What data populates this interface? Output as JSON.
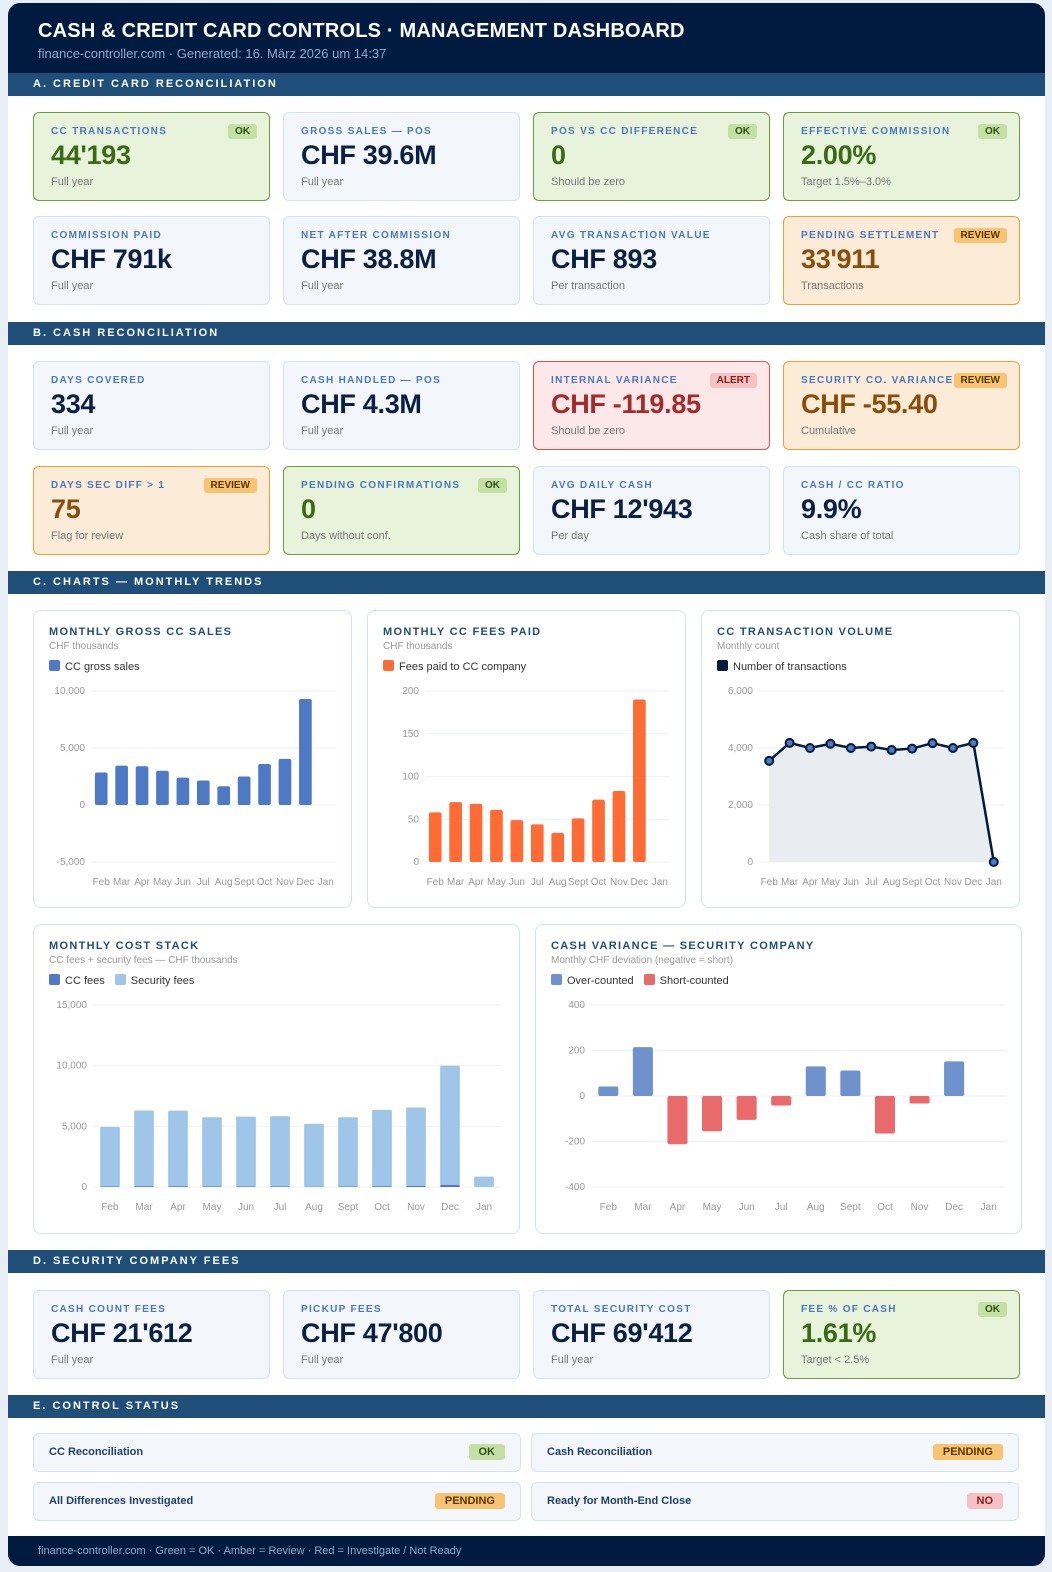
{
  "header": {
    "title": "CASH & CREDIT CARD CONTROLS  ·  MANAGEMENT DASHBOARD",
    "subtitle": "finance-controller.com  ·  Generated: 16. März 2026 um 14:37"
  },
  "sections": {
    "a": "A.  CREDIT CARD RECONCILIATION",
    "b": "B.  CASH RECONCILIATION",
    "c": "C.  CHARTS — MONTHLY TRENDS",
    "d": "D.  SECURITY COMPANY FEES",
    "e": "E.  CONTROL STATUS"
  },
  "colors": {
    "header": "#001a40",
    "section": "#1f4e79",
    "ok": "#6aa035",
    "review": "#f0a030",
    "alert": "#e05050"
  },
  "kpi_a": [
    {
      "label": "CC TRANSACTIONS",
      "value": "44'193",
      "note": "Full year",
      "badge": "OK",
      "status": "green"
    },
    {
      "label": "GROSS SALES — POS",
      "value": "CHF 39.6M",
      "note": "Full year",
      "badge": "",
      "status": "neutral"
    },
    {
      "label": "POS VS CC DIFFERENCE",
      "value": "0",
      "note": "Should be zero",
      "badge": "OK",
      "status": "green"
    },
    {
      "label": "EFFECTIVE COMMISSION",
      "value": "2.00%",
      "note": "Target 1.5%–3.0%",
      "badge": "OK",
      "status": "green"
    },
    {
      "label": "COMMISSION PAID",
      "value": "CHF 791k",
      "note": "Full year",
      "badge": "",
      "status": "neutral"
    },
    {
      "label": "NET AFTER COMMISSION",
      "value": "CHF 38.8M",
      "note": "Full year",
      "badge": "",
      "status": "neutral"
    },
    {
      "label": "AVG TRANSACTION VALUE",
      "value": "CHF 893",
      "note": "Per transaction",
      "badge": "",
      "status": "neutral"
    },
    {
      "label": "PENDING SETTLEMENT",
      "value": "33'911",
      "note": "Transactions",
      "badge": "REVIEW",
      "status": "amber"
    }
  ],
  "kpi_b": [
    {
      "label": "DAYS COVERED",
      "value": "334",
      "note": "Full year",
      "badge": "",
      "status": "neutral"
    },
    {
      "label": "CASH HANDLED — POS",
      "value": "CHF 4.3M",
      "note": "Full year",
      "badge": "",
      "status": "neutral"
    },
    {
      "label": "INTERNAL VARIANCE",
      "value": "CHF -119.85",
      "note": "Should be zero",
      "badge": "ALERT",
      "status": "red"
    },
    {
      "label": "SECURITY CO. VARIANCE",
      "value": "CHF -55.40",
      "note": "Cumulative",
      "badge": "REVIEW",
      "status": "amber"
    },
    {
      "label": "DAYS SEC DIFF > 1",
      "value": "75",
      "note": "Flag for review",
      "badge": "REVIEW",
      "status": "amber"
    },
    {
      "label": "PENDING CONFIRMATIONS",
      "value": "0",
      "note": "Days without conf.",
      "badge": "OK",
      "status": "green"
    },
    {
      "label": "AVG DAILY CASH",
      "value": "CHF 12'943",
      "note": "Per day",
      "badge": "",
      "status": "neutral"
    },
    {
      "label": "CASH / CC RATIO",
      "value": "9.9%",
      "note": "Cash share of total",
      "badge": "",
      "status": "neutral"
    }
  ],
  "kpi_d": [
    {
      "label": "CASH COUNT FEES",
      "value": "CHF 21'612",
      "note": "Full year",
      "badge": "",
      "status": "neutral"
    },
    {
      "label": "PICKUP FEES",
      "value": "CHF 47'800",
      "note": "Full year",
      "badge": "",
      "status": "neutral"
    },
    {
      "label": "TOTAL SECURITY COST",
      "value": "CHF 69'412",
      "note": "Full year",
      "badge": "",
      "status": "neutral"
    },
    {
      "label": "FEE % OF CASH",
      "value": "1.61%",
      "note": "Target < 2.5%",
      "badge": "OK",
      "status": "green"
    }
  ],
  "chart_data": [
    {
      "id": "gross",
      "type": "bar",
      "title": "MONTHLY GROSS CC SALES",
      "subtitle": "CHF thousands",
      "categories": [
        "Feb",
        "Mar",
        "Apr",
        "May",
        "Jun",
        "Jul",
        "Aug",
        "Sept",
        "Oct",
        "Nov",
        "Dec",
        "Jan"
      ],
      "series": [
        {
          "name": "CC gross sales",
          "color": "#4e79c4",
          "values": [
            2850,
            3450,
            3400,
            3000,
            2400,
            2150,
            1650,
            2500,
            3600,
            4050,
            9300,
            0
          ]
        }
      ],
      "ylim": [
        -5000,
        10000
      ],
      "yticks": [
        "10,000",
        "5,000",
        "0",
        "-5,000"
      ],
      "ytick_values": [
        10000,
        5000,
        0,
        -5000
      ],
      "grid": true,
      "legend": "top-left"
    },
    {
      "id": "fees",
      "type": "bar",
      "title": "MONTHLY CC FEES PAID",
      "subtitle": "CHF thousands",
      "categories": [
        "Feb",
        "Mar",
        "Apr",
        "May",
        "Jun",
        "Jul",
        "Aug",
        "Sept",
        "Oct",
        "Nov",
        "Dec",
        "Jan"
      ],
      "series": [
        {
          "name": "Fees paid to CC company",
          "color": "#ff6b35",
          "values": [
            58,
            70,
            68,
            61,
            49,
            44,
            34,
            51,
            73,
            83,
            190,
            0
          ]
        }
      ],
      "ylim": [
        0,
        200
      ],
      "yticks": [
        "200",
        "150",
        "100",
        "50",
        "0"
      ],
      "ytick_values": [
        200,
        150,
        100,
        50,
        0
      ],
      "grid": true,
      "legend": "top-left"
    },
    {
      "id": "volume",
      "type": "area",
      "title": "CC TRANSACTION VOLUME",
      "subtitle": "Monthly count",
      "categories": [
        "Feb",
        "Mar",
        "Apr",
        "May",
        "Jun",
        "Jul",
        "Aug",
        "Sept",
        "Oct",
        "Nov",
        "Dec",
        "Jan"
      ],
      "series": [
        {
          "name": "Number of transactions",
          "color": "#001a40",
          "values": [
            3550,
            4180,
            4000,
            4150,
            4000,
            4050,
            3930,
            3980,
            4170,
            4000,
            4180,
            0
          ]
        }
      ],
      "ylim": [
        0,
        6000
      ],
      "yticks": [
        "6,000",
        "4,000",
        "2,000",
        "0"
      ],
      "ytick_values": [
        6000,
        4000,
        2000,
        0
      ],
      "grid": true,
      "legend": "top-left"
    },
    {
      "id": "stack",
      "type": "bar",
      "stacked": true,
      "title": "MONTHLY COST STACK",
      "subtitle": "CC fees + security fees — CHF thousands",
      "categories": [
        "Feb",
        "Mar",
        "Apr",
        "May",
        "Jun",
        "Jul",
        "Aug",
        "Sept",
        "Oct",
        "Nov",
        "Dec",
        "Jan"
      ],
      "series": [
        {
          "name": "CC fees",
          "color": "#4e79c4",
          "values": [
            58,
            70,
            68,
            61,
            49,
            44,
            34,
            51,
            73,
            83,
            190,
            0
          ]
        },
        {
          "name": "Security fees",
          "color": "#9fc5e8",
          "values": [
            4900,
            6230,
            6230,
            5690,
            5750,
            5800,
            5170,
            5700,
            6280,
            6470,
            9810,
            850
          ]
        }
      ],
      "ylim": [
        0,
        15000
      ],
      "yticks": [
        "15,000",
        "10,000",
        "5,000",
        "0"
      ],
      "ytick_values": [
        15000,
        10000,
        5000,
        0
      ],
      "grid": true,
      "legend": "top-left"
    },
    {
      "id": "variance",
      "type": "bar",
      "title": "CASH VARIANCE — SECURITY COMPANY",
      "subtitle": "Monthly CHF deviation (negative = short)",
      "categories": [
        "Feb",
        "Mar",
        "Apr",
        "May",
        "Jun",
        "Jul",
        "Aug",
        "Sept",
        "Oct",
        "Nov",
        "Dec",
        "Jan"
      ],
      "series": [
        {
          "name": "Over-counted",
          "color": "#6f92cc"
        },
        {
          "name": "Short-counted",
          "color": "#e86a6a"
        }
      ],
      "values": [
        42,
        215,
        -212,
        -155,
        -105,
        -42,
        130,
        112,
        -165,
        -33,
        152,
        0
      ],
      "ylim": [
        -400,
        400
      ],
      "yticks": [
        "400",
        "200",
        "0",
        "-200",
        "-400"
      ],
      "ytick_values": [
        400,
        200,
        0,
        -200,
        -400
      ],
      "grid": true,
      "legend": "top-left"
    }
  ],
  "status": [
    {
      "label": "CC Reconciliation",
      "badge": "OK",
      "status": "ok"
    },
    {
      "label": "Cash Reconciliation",
      "badge": "PENDING",
      "status": "review"
    },
    {
      "label": "All Differences Investigated",
      "badge": "PENDING",
      "status": "review"
    },
    {
      "label": "Ready for Month-End Close",
      "badge": "NO",
      "status": "alert"
    }
  ],
  "footer": "finance-controller.com  ·  Green = OK  ·  Amber = Review  ·  Red = Investigate / Not Ready"
}
